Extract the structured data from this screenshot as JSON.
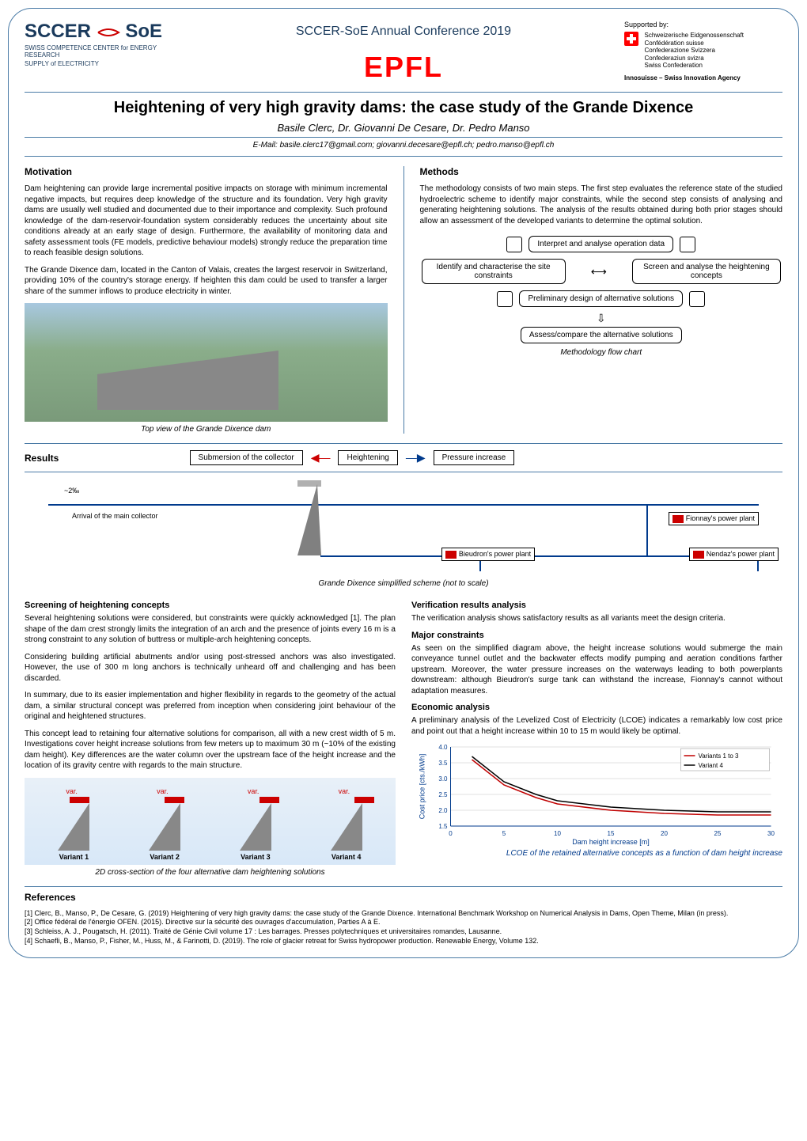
{
  "header": {
    "sccer_logo": "SCCER",
    "soe_logo": "SoE",
    "sccer_sub1": "SWISS COMPETENCE CENTER for ENERGY RESEARCH",
    "sccer_sub2": "SUPPLY of ELECTRICITY",
    "conference": "SCCER-SoE Annual Conference 2019",
    "epfl": "EPFL",
    "supported_label": "Supported by:",
    "confed_lines": [
      "Schweizerische Eidgenossenschaft",
      "Confédération suisse",
      "Confederazione Svizzera",
      "Confederaziun svizra",
      "Swiss Confederation"
    ],
    "innosuisse": "Innosuisse – Swiss Innovation Agency"
  },
  "title": {
    "main": "Heightening of very high gravity dams: the case study of the Grande Dixence",
    "authors": "Basile Clerc, Dr. Giovanni De Cesare, Dr. Pedro Manso",
    "emails": "E-Mail: basile.clerc17@gmail.com; giovanni.decesare@epfl.ch; pedro.manso@epfl.ch"
  },
  "motivation": {
    "heading": "Motivation",
    "para1": "Dam heightening can provide large incremental positive impacts on storage with minimum incremental negative impacts, but requires deep knowledge of the structure and its foundation. Very high gravity dams are usually well studied and documented due to their importance and complexity. Such profound knowledge of the dam-reservoir-foundation system considerably reduces the uncertainty about site conditions already at an early stage of design. Furthermore, the availability of monitoring data and safety assessment tools (FE models, predictive behaviour models) strongly reduce the preparation time to reach feasible design solutions.",
    "para2": "The Grande Dixence dam, located in the Canton of Valais, creates the largest reservoir in Switzerland, providing 10% of the country's storage energy. If heighten this dam could be used to transfer a larger share of the summer inflows to produce electricity in winter.",
    "caption": "Top view of the Grande Dixence dam"
  },
  "methods": {
    "heading": "Methods",
    "para1": "The methodology consists of two main steps. The first step evaluates the reference state of the studied hydroelectric scheme to identify major constraints, while the second step consists of analysing and generating heightening solutions. The analysis of the results obtained during both prior stages should allow an assessment of the developed variants to determine the optimal solution.",
    "flow": {
      "node1": "Interpret and analyse operation data",
      "node2": "Identify and characterise the site constraints",
      "node3": "Screen and analyse the heightening concepts",
      "node4": "Preliminary design of alternative solutions",
      "node5": "Assess/compare the alternative solutions"
    },
    "caption": "Methodology flow chart"
  },
  "results": {
    "heading": "Results",
    "box1": "Submersion of the collector",
    "box2": "Heightening",
    "box3": "Pressure increase",
    "scheme": {
      "slope": "~2‰",
      "collector": "Arrival of the main collector",
      "fionnay": "Fionnay's power plant",
      "bieudron": "Bieudron's power plant",
      "nendaz": "Nendaz's power plant"
    },
    "scheme_caption": "Grande Dixence simplified scheme (not to scale)"
  },
  "screening": {
    "heading": "Screening of heightening concepts",
    "para1": "Several heightening solutions were considered, but constraints were quickly acknowledged [1]. The plan shape of the dam crest strongly limits the integration of an arch and the presence of joints every 16 m is a strong constraint to any solution of buttress or multiple-arch heightening concepts.",
    "para2": "Considering building artificial abutments and/or using post-stressed anchors was also investigated. However, the use of 300 m long anchors is technically unheard off and challenging and has been discarded.",
    "para3": "In summary, due to its easier implementation and higher flexibility in regards to the geometry of the actual dam, a similar structural concept was preferred from inception when considering joint behaviour of the original and heightened structures.",
    "para4": "This concept lead to retaining four alternative solutions for comparison, all with a new crest width of 5 m. Investigations cover height increase solutions from few meters up to maximum 30 m (~10% of the existing dam height). Key differences are the water column over the upstream face of the height increase and the location of its gravity centre with regards to the main structure.",
    "var_text": "var.",
    "variants": [
      "Variant 1",
      "Variant 2",
      "Variant 3",
      "Variant 4"
    ],
    "caption": "2D cross-section of the four alternative dam heightening solutions"
  },
  "verification": {
    "heading": "Verification results analysis",
    "para": "The verification analysis shows satisfactory results as all variants meet the design criteria."
  },
  "constraints": {
    "heading": "Major constraints",
    "para": "As seen on the simplified diagram above, the height increase solutions would submerge the main conveyance tunnel outlet and the backwater effects modify pumping and aeration conditions farther upstream. Moreover, the water pressure increases on the waterways leading to both powerplants downstream: although Bieudron's surge tank can withstand the increase, Fionnay's cannot without adaptation measures."
  },
  "economic": {
    "heading": "Economic analysis",
    "para": "A preliminary analysis of the Levelized Cost of Electricity (LCOE) indicates a remarkably low cost price and point out that a height increase within 10 to 15 m would likely be optimal.",
    "chart": {
      "type": "line",
      "xlabel": "Dam height increase [m]",
      "ylabel": "Cost price [cts./kWh]",
      "xlim": [
        0,
        30
      ],
      "ylim": [
        1.5,
        4.0
      ],
      "xticks": [
        0,
        5,
        10,
        15,
        20,
        25,
        30
      ],
      "yticks": [
        1.5,
        2.0,
        2.5,
        3.0,
        3.5,
        4.0
      ],
      "series": [
        {
          "name": "Variants 1 to 3",
          "color": "#c00000",
          "x": [
            2,
            5,
            8,
            10,
            15,
            20,
            25,
            30
          ],
          "y": [
            3.6,
            2.8,
            2.4,
            2.2,
            2.0,
            1.9,
            1.85,
            1.85
          ]
        },
        {
          "name": "Variant 4",
          "color": "#000000",
          "x": [
            2,
            5,
            8,
            10,
            15,
            20,
            25,
            30
          ],
          "y": [
            3.7,
            2.9,
            2.5,
            2.3,
            2.1,
            2.0,
            1.95,
            1.95
          ]
        }
      ],
      "legend_items": [
        "Variants 1 to 3",
        "Variant 4"
      ],
      "text_color": "#003a8c",
      "grid_color": "#e0e0e0",
      "tick_fontsize": 8,
      "label_fontsize": 9
    },
    "caption": "LCOE of the retained alternative concepts as a function of dam height increase"
  },
  "references": {
    "heading": "References",
    "items": [
      "[1] Clerc, B., Manso, P., De Cesare, G. (2019) Heightening of very high gravity dams: the case study of the Grande Dixence. International Benchmark Workshop on Numerical Analysis in Dams, Open Theme, Milan (in press).",
      "[2] Office fédéral de l'énergie OFEN. (2015). Directive sur la sécurité des ouvrages d'accumulation, Parties A à E.",
      "[3] Schleiss, A. J., Pougatsch, H. (2011). Traité de Génie Civil volume 17 : Les barrages. Presses polytechniques et universitaires romandes, Lausanne.",
      "[4] Schaefli, B., Manso, P., Fisher, M., Huss, M., & Farinotti, D. (2019). The role of glacier retreat for Swiss hydropower production. Renewable Energy, Volume 132."
    ]
  }
}
